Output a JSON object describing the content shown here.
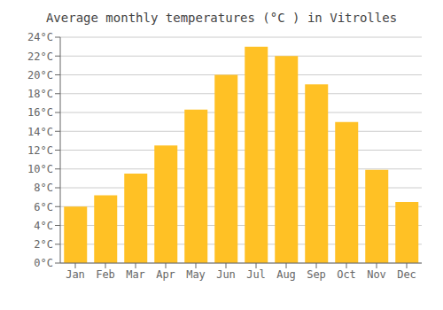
{
  "chart_data": {
    "type": "bar",
    "title": "Average monthly temperatures (°C ) in Vitrolles",
    "categories": [
      "Jan",
      "Feb",
      "Mar",
      "Apr",
      "May",
      "Jun",
      "Jul",
      "Aug",
      "Sep",
      "Oct",
      "Nov",
      "Dec"
    ],
    "values": [
      6.0,
      7.2,
      9.5,
      12.5,
      16.3,
      20.0,
      23.0,
      22.0,
      19.0,
      15.0,
      9.9,
      6.5
    ],
    "color": "#FFC125",
    "ylim": [
      0,
      24
    ],
    "yticks": [
      {
        "value": 0,
        "label": "0°C"
      },
      {
        "value": 2,
        "label": "2°C"
      },
      {
        "value": 4,
        "label": "4°C"
      },
      {
        "value": 6,
        "label": "6°C"
      },
      {
        "value": 8,
        "label": "8°C"
      },
      {
        "value": 10,
        "label": "10°C"
      },
      {
        "value": 12,
        "label": "12°C"
      },
      {
        "value": 14,
        "label": "14°C"
      },
      {
        "value": 16,
        "label": "16°C"
      },
      {
        "value": 18,
        "label": "18°C"
      },
      {
        "value": 20,
        "label": "20°C"
      },
      {
        "value": 22,
        "label": "22°C"
      },
      {
        "value": 24,
        "label": "24°C"
      }
    ],
    "grid": true
  }
}
